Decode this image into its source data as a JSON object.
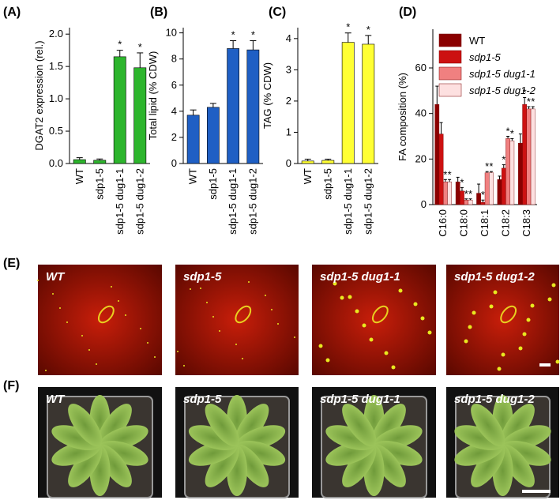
{
  "chart_data": [
    {
      "type": "bar",
      "panel": "(A)",
      "ylabel": "DGAT2 expression (rel.)",
      "categories": [
        "WT",
        "sdp1-5",
        "sdp1-5 dug1-1",
        "sdp1-5 dug1-2"
      ],
      "values": [
        0.06,
        0.05,
        1.65,
        1.48
      ],
      "errors": [
        0.03,
        0.02,
        0.1,
        0.23
      ],
      "annotations": [
        null,
        null,
        "*",
        "*"
      ],
      "color": "#2db52d",
      "ylim": [
        0,
        2.1
      ],
      "yticks": [
        {
          "value": 0,
          "label": "0.0"
        },
        {
          "value": 0.5,
          "label": "0.5"
        },
        {
          "value": 1,
          "label": "1.0"
        },
        {
          "value": 1.5,
          "label": "1.5"
        },
        {
          "value": 2,
          "label": "2.0"
        }
      ]
    },
    {
      "type": "bar",
      "panel": "(B)",
      "ylabel": "Total lipid (% CDW)",
      "categories": [
        "WT",
        "sdp1-5",
        "sdp1-5 dug1-1",
        "sdp1-5 dug1-2"
      ],
      "values": [
        3.7,
        4.3,
        8.8,
        8.7
      ],
      "errors": [
        0.4,
        0.3,
        0.6,
        0.7
      ],
      "annotations": [
        null,
        null,
        "*",
        "*"
      ],
      "color": "#1f5fc4",
      "ylim": [
        0,
        10.4
      ],
      "yticks": [
        0,
        2,
        4,
        6,
        8,
        10
      ]
    },
    {
      "type": "bar",
      "panel": "(C)",
      "ylabel": "TAG (% CDW)",
      "categories": [
        "WT",
        "sdp1-5",
        "sdp1-5 dug1-1",
        "sdp1-5 dug1-2"
      ],
      "values": [
        0.08,
        0.1,
        3.88,
        3.82
      ],
      "errors": [
        0.06,
        0.04,
        0.3,
        0.28
      ],
      "annotations": [
        null,
        null,
        "*",
        "*"
      ],
      "color": "#ffff33",
      "ylim": [
        0,
        4.35
      ],
      "yticks": [
        0,
        1,
        2,
        3,
        4
      ]
    },
    {
      "type": "grouped_bar",
      "panel": "(D)",
      "ylabel": "FA composition (%)",
      "categories": [
        "C16:0",
        "C18:0",
        "C18:1",
        "C18:2",
        "C18:3"
      ],
      "legend": "top",
      "series": [
        {
          "name": "WT",
          "color": "#8b0000",
          "values": [
            44,
            10,
            5,
            11,
            27
          ],
          "errors": [
            8,
            2,
            4,
            1.5,
            4
          ],
          "annotations": [
            null,
            null,
            null,
            null,
            null
          ]
        },
        {
          "name": "sdp1-5",
          "color": "#cc1111",
          "values": [
            31,
            6,
            1,
            16,
            44
          ],
          "errors": [
            5,
            1.5,
            1,
            1.5,
            3
          ],
          "annotations": [
            null,
            "*",
            "*",
            "*",
            "*"
          ]
        },
        {
          "name": "sdp1-5 dug1-1",
          "color": "#f08080",
          "values": [
            10,
            2,
            14,
            29,
            42
          ],
          "errors": [
            1,
            0.5,
            0.5,
            1,
            1
          ],
          "annotations": [
            "*",
            "*",
            "*",
            "*",
            "*"
          ]
        },
        {
          "name": "sdp1-5 dug1-2",
          "color": "#fde0e0",
          "values": [
            10,
            2,
            14,
            28,
            42
          ],
          "errors": [
            1,
            0.5,
            0.5,
            1,
            1
          ],
          "annotations": [
            "*",
            "*",
            "*",
            "*",
            "*"
          ]
        }
      ],
      "ylim": [
        0,
        77
      ],
      "yticks": [
        0,
        20,
        40,
        60
      ]
    }
  ],
  "images": [
    {
      "panel": "(E)",
      "labels": [
        "WT",
        "sdp1-5",
        "sdp1-5 dug1-1",
        "sdp1-5 dug1-2"
      ]
    },
    {
      "panel": "(F)",
      "labels": [
        "WT",
        "sdp1-5",
        "sdp1-5 dug1-1",
        "sdp1-5 dug1-2"
      ]
    }
  ]
}
